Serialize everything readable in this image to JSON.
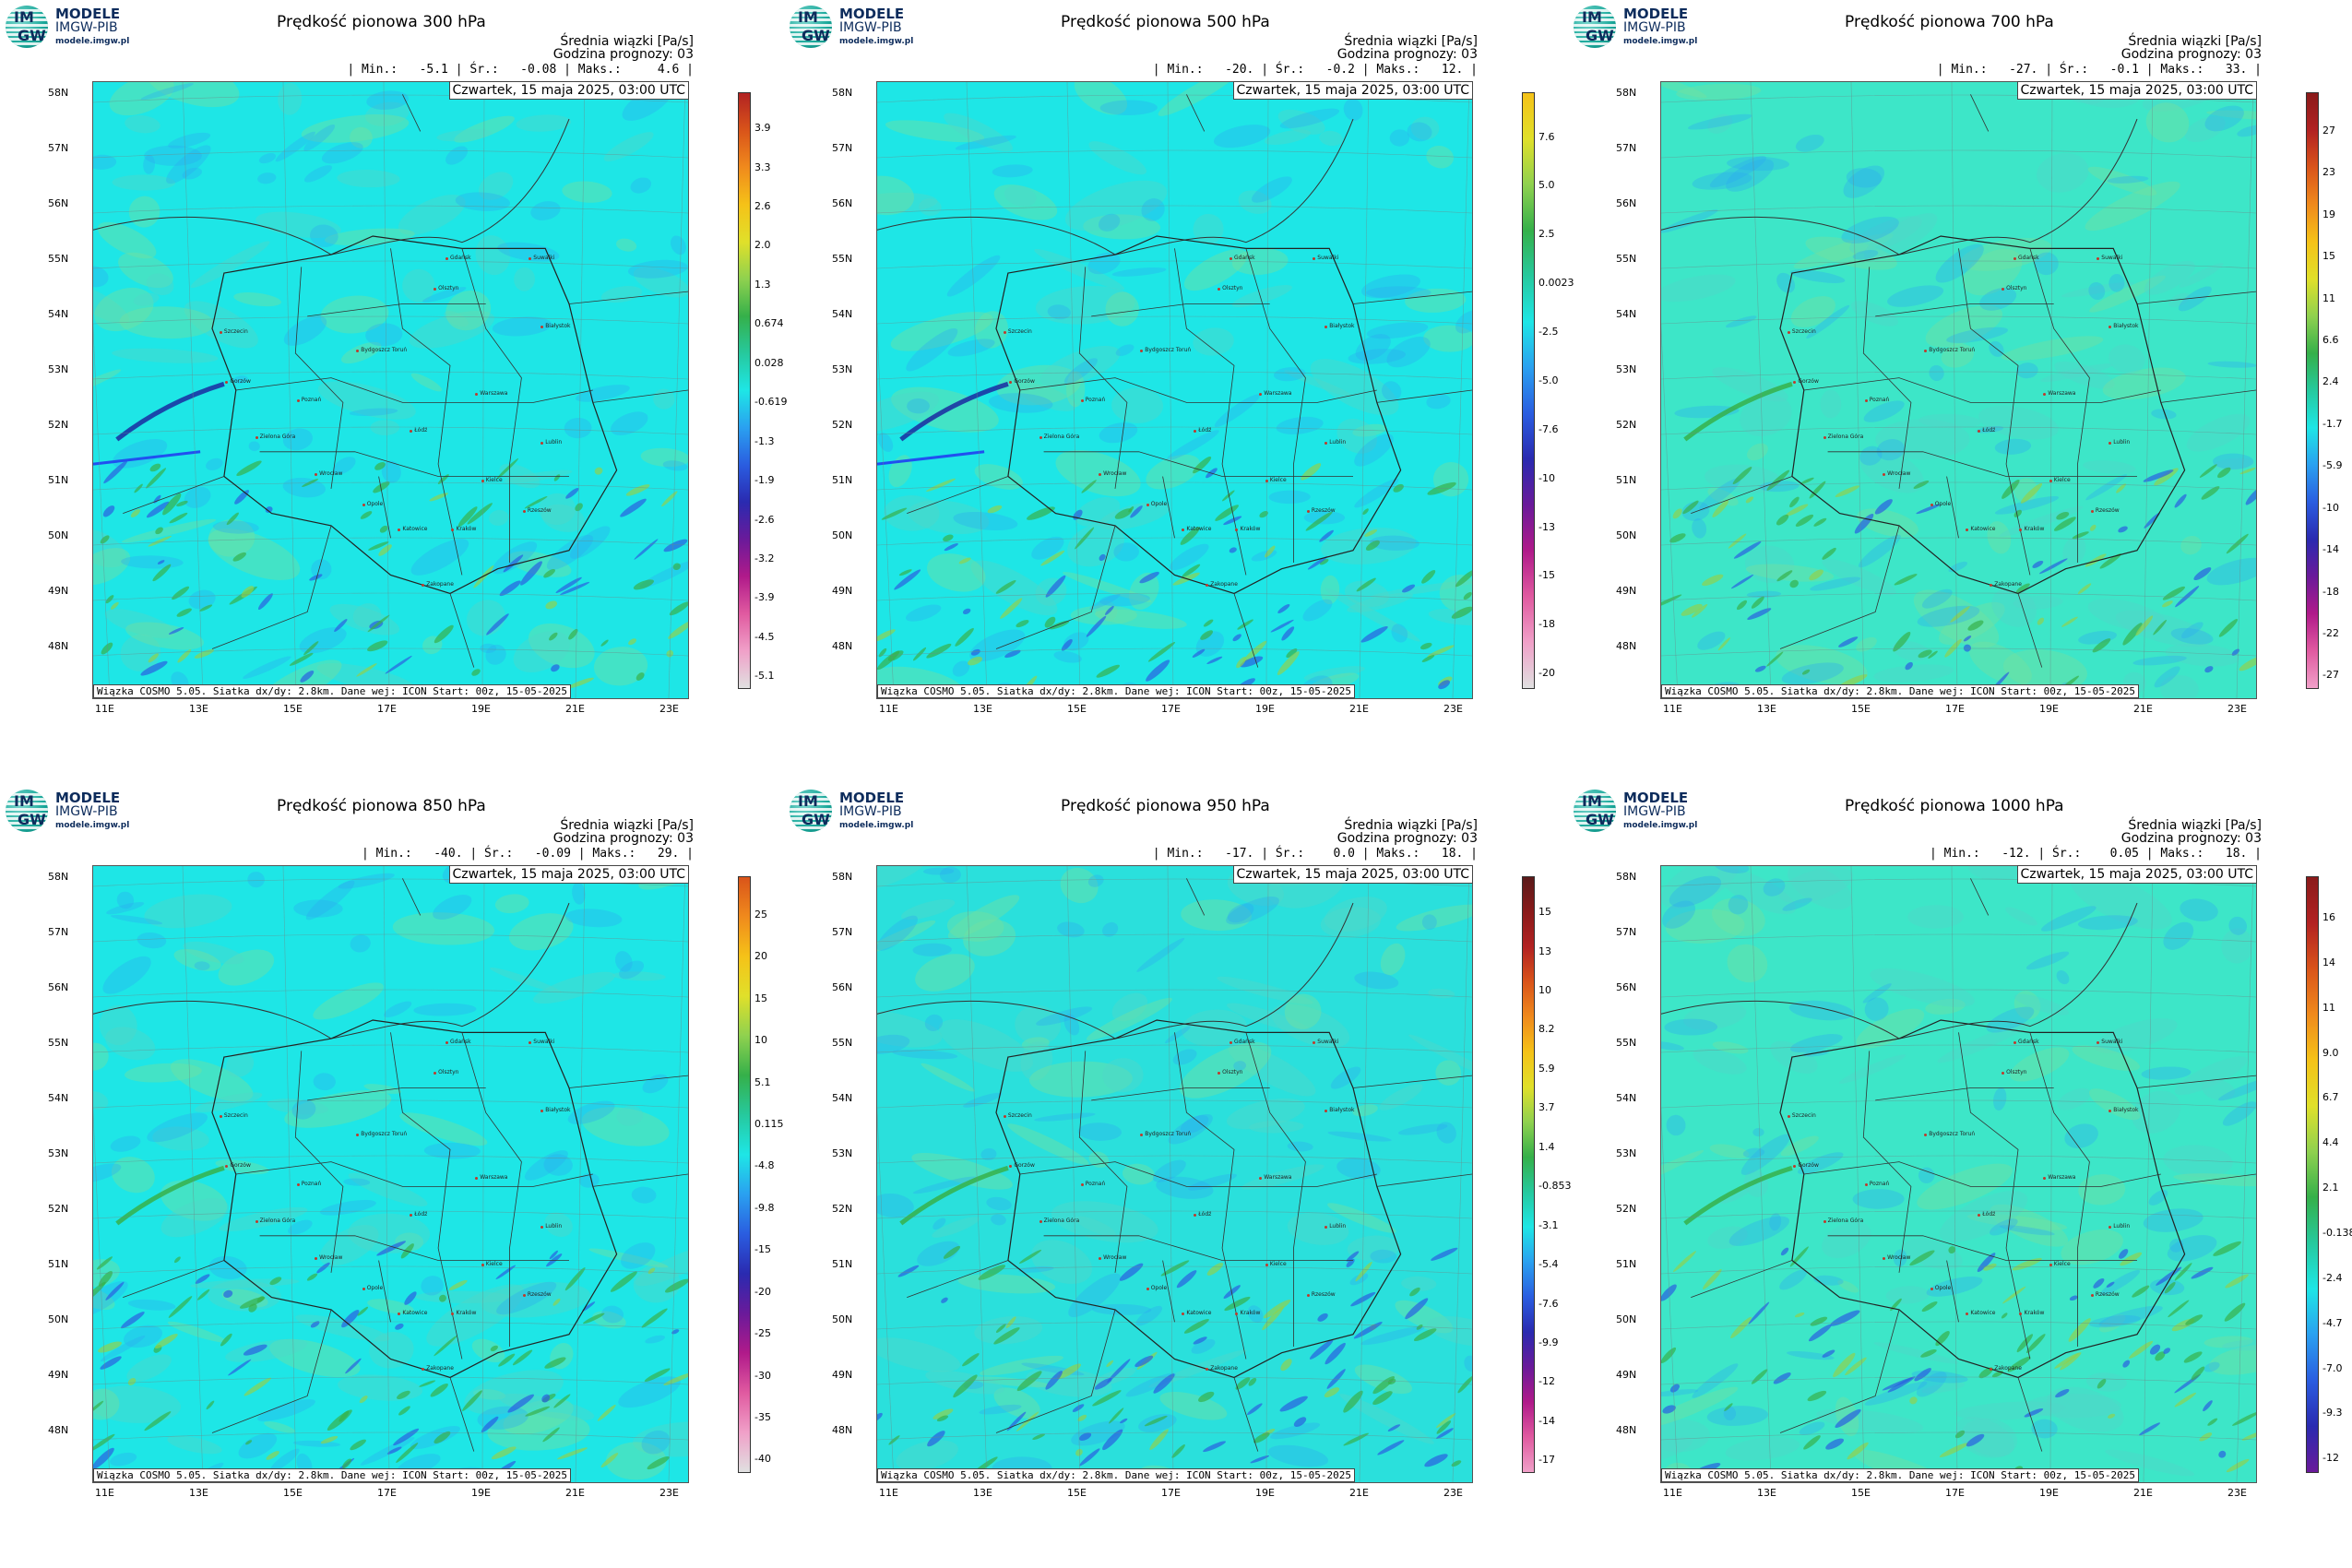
{
  "logo": {
    "line1": "MODELE",
    "line2": "IMGW-PIB",
    "line3": "modele.imgw.pl",
    "glyph_top": "IM",
    "glyph_bottom": "GW"
  },
  "meta": {
    "subtitle": "Średnia wiązki [Pa/s]",
    "forecast_hour": "Godzina prognozy: 03"
  },
  "date_label": "Czwartek, 15 maja 2025, 03:00 UTC",
  "footer": "Wiązka COSMO 5.05. Siatka dx/dy: 2.8km. Dane wej: ICON Start: 00z, 15-05-2025",
  "lat_labels": [
    "58N",
    "57N",
    "56N",
    "55N",
    "54N",
    "53N",
    "52N",
    "51N",
    "50N",
    "49N",
    "48N"
  ],
  "lon_labels": [
    "11E",
    "13E",
    "15E",
    "17E",
    "19E",
    "21E",
    "23E"
  ],
  "cities": [
    "Gdańsk",
    "Suwałki",
    "Olsztyn",
    "Szczecin",
    "Białystok",
    "Bydgoszcz Toruń",
    "Gorzów",
    "Poznań",
    "Warszawa",
    "Łódź",
    "Zielona Góra",
    "Lublin",
    "Wrocław",
    "Kielce",
    "Opole",
    "Katowice",
    "Kraków",
    "Rzeszów",
    "Zakopane"
  ],
  "colors": {
    "base": "#1ee6e6",
    "field_green": "#66e0a8",
    "band_blue": "#2060ff",
    "band_dark": "#1a2aa0",
    "border": "#222222"
  },
  "panels": [
    {
      "title": "Prędkość pionowa 300 hPa",
      "stats": "| Min.:   -5.1 | Śr.:   -0.08 | Maks.:     4.6 |",
      "colorbar": [
        "3.9",
        "3.3",
        "2.6",
        "2.0",
        "1.3",
        "0.674",
        "0.028",
        "-0.619",
        "-1.3",
        "-1.9",
        "-2.6",
        "-3.2",
        "-3.9",
        "-4.5",
        "-5.1"
      ],
      "cbar_colors": [
        "#b22222",
        "#d9541a",
        "#f08a1c",
        "#f5c218",
        "#e0e02a",
        "#8fd14f",
        "#35b04a",
        "#26c99e",
        "#1ee6e6",
        "#2aa0f0",
        "#2a5de0",
        "#2a2ab0",
        "#6a1a9a",
        "#b01a8a",
        "#e05aa0",
        "#f0a0c8",
        "#e0e0e0"
      ],
      "field": "300"
    },
    {
      "title": "Prędkość pionowa 500 hPa",
      "stats": "| Min.:   -20. | Śr.:   -0.2 | Maks.:   12. |",
      "colorbar": [
        "7.6",
        "5.0",
        "2.5",
        "0.0023",
        "-2.5",
        "-5.0",
        "-7.6",
        "-10",
        "-13",
        "-15",
        "-18",
        "-20"
      ],
      "cbar_colors": [
        "#f5c218",
        "#e0e02a",
        "#8fd14f",
        "#35b04a",
        "#26c99e",
        "#1ee6e6",
        "#2aa0f0",
        "#2a5de0",
        "#2a2ab0",
        "#6a1a9a",
        "#b01a8a",
        "#e05aa0",
        "#f0a0c8",
        "#e0e0e0"
      ],
      "field": "500"
    },
    {
      "title": "Prędkość pionowa 700 hPa",
      "stats": "| Min.:   -27. | Śr.:   -0.1 | Maks.:   33. |",
      "colorbar": [
        "27",
        "23",
        "19",
        "15",
        "11",
        "6.6",
        "2.4",
        "-1.7",
        "-5.9",
        "-10",
        "-14",
        "-18",
        "-22",
        "-27"
      ],
      "cbar_colors": [
        "#8a1a1a",
        "#b22222",
        "#d9541a",
        "#f08a1c",
        "#f5c218",
        "#e0e02a",
        "#8fd14f",
        "#35b04a",
        "#26c99e",
        "#1ee6e6",
        "#2aa0f0",
        "#2a5de0",
        "#2a2ab0",
        "#6a1a9a",
        "#b01a8a",
        "#e05aa0",
        "#f0a0c8"
      ],
      "field": "700"
    },
    {
      "title": "Prędkość pionowa 850 hPa",
      "stats": "| Min.:   -40. | Śr.:   -0.09 | Maks.:   29. |",
      "colorbar": [
        "25",
        "20",
        "15",
        "10",
        "5.1",
        "0.115",
        "-4.8",
        "-9.8",
        "-15",
        "-20",
        "-25",
        "-30",
        "-35",
        "-40"
      ],
      "cbar_colors": [
        "#d9541a",
        "#f08a1c",
        "#f5c218",
        "#e0e02a",
        "#8fd14f",
        "#35b04a",
        "#26c99e",
        "#1ee6e6",
        "#2aa0f0",
        "#2a5de0",
        "#2a2ab0",
        "#6a1a9a",
        "#b01a8a",
        "#e05aa0",
        "#f0a0c8",
        "#e0e0e0"
      ],
      "field": "850"
    },
    {
      "title": "Prędkość pionowa 950 hPa",
      "stats": "| Min.:   -17. | Śr.:    0.0 | Maks.:   18. |",
      "colorbar": [
        "15",
        "13",
        "10",
        "8.2",
        "5.9",
        "3.7",
        "1.4",
        "-0.853",
        "-3.1",
        "-5.4",
        "-7.6",
        "-9.9",
        "-12",
        "-14",
        "-17"
      ],
      "cbar_colors": [
        "#5a1a1a",
        "#8a1a1a",
        "#b22222",
        "#d9541a",
        "#f08a1c",
        "#f5c218",
        "#e0e02a",
        "#8fd14f",
        "#35b04a",
        "#26c99e",
        "#1ee6e6",
        "#2aa0f0",
        "#2a5de0",
        "#2a2ab0",
        "#6a1a9a",
        "#b01a8a",
        "#e05aa0",
        "#f0a0c8"
      ],
      "field": "950"
    },
    {
      "title": "Prędkość pionowa 1000 hPa",
      "stats": "| Min.:   -12. | Śr.:    0.05 | Maks.:   18. |",
      "colorbar": [
        "16",
        "14",
        "11",
        "9.0",
        "6.7",
        "4.4",
        "2.1",
        "-0.138",
        "-2.4",
        "-4.7",
        "-7.0",
        "-9.3",
        "-12"
      ],
      "cbar_colors": [
        "#8a1a1a",
        "#b22222",
        "#d9541a",
        "#f08a1c",
        "#f5c218",
        "#e0e02a",
        "#8fd14f",
        "#35b04a",
        "#26c99e",
        "#1ee6e6",
        "#2aa0f0",
        "#2a5de0",
        "#2a2ab0",
        "#6a1a9a"
      ],
      "field": "1000"
    }
  ]
}
